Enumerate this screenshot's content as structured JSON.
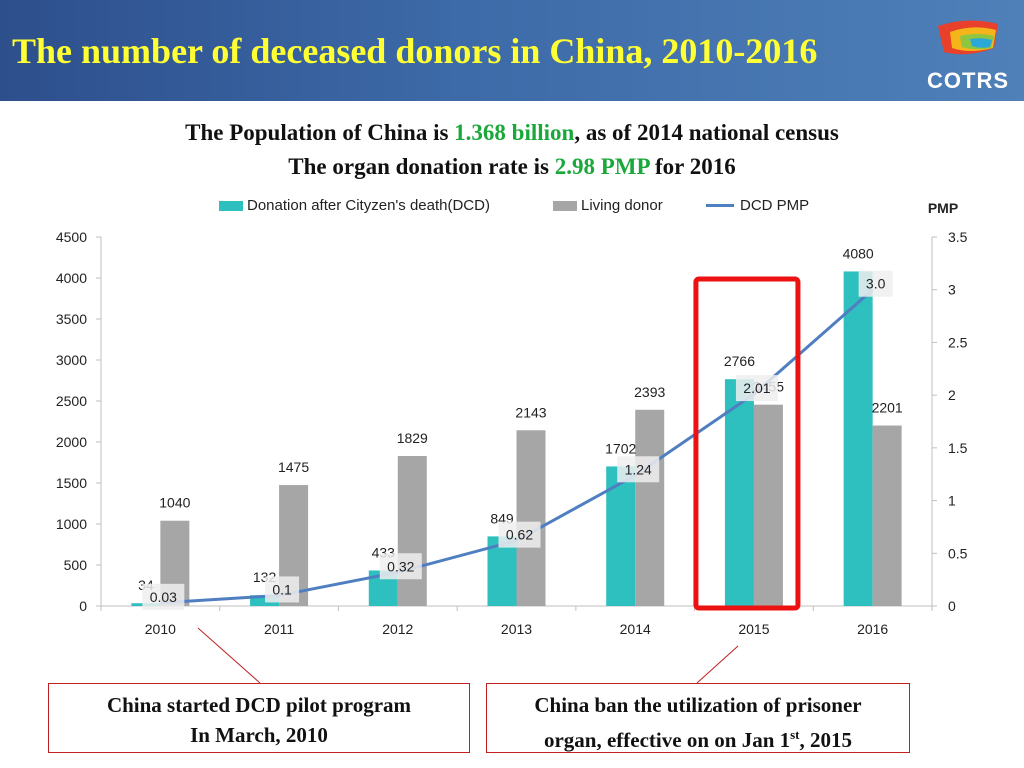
{
  "header": {
    "title": "The number of deceased donors in China, 2010-2016",
    "logo_text": "COTRS"
  },
  "subtitle": {
    "line1_pre": "The Population of China is ",
    "line1_value": "1.368 billion",
    "line1_post": ", as of 2014 national census",
    "line2_pre": "The organ donation rate is ",
    "line2_value": "2.98 PMP",
    "line2_post": " for 2016"
  },
  "chart_data": {
    "type": "bar",
    "categories": [
      "2010",
      "2011",
      "2012",
      "2013",
      "2014",
      "2015",
      "2016"
    ],
    "series": [
      {
        "name": "Donation after Cityzen's death(DCD)",
        "type": "bar",
        "axis": "left",
        "color": "#2ebfbf",
        "values": [
          34,
          132,
          433,
          849,
          1702,
          2766,
          4080
        ],
        "labels": [
          "34",
          "132",
          "433",
          "849",
          "1702",
          "2766",
          "4080"
        ]
      },
      {
        "name": "Living donor",
        "type": "bar",
        "axis": "left",
        "color": "#a6a6a6",
        "values": [
          1040,
          1475,
          1829,
          2143,
          2393,
          2455,
          2201
        ],
        "labels": [
          "1040",
          "1475",
          "1829",
          "2143",
          "2393",
          "2455",
          "2201"
        ]
      },
      {
        "name": "DCD PMP",
        "type": "line",
        "axis": "right",
        "color": "#4f7fc0",
        "values": [
          0.03,
          0.1,
          0.32,
          0.62,
          1.24,
          2.01,
          3.0
        ],
        "labels": [
          "0.03",
          "0.1",
          "0.32",
          "0.62",
          "1.24",
          "2.01",
          "3.0"
        ]
      }
    ],
    "y_left": {
      "min": 0,
      "max": 4500,
      "ticks": [
        "0",
        "500",
        "1000",
        "1500",
        "2000",
        "2500",
        "3000",
        "3500",
        "4000",
        "4500"
      ]
    },
    "y_right": {
      "label": "PMP",
      "min": 0,
      "max": 3.5,
      "ticks": [
        "0",
        "0.5",
        "1",
        "1.5",
        "2",
        "2.5",
        "3",
        "3.5"
      ]
    },
    "legend_position": "top",
    "grid": false,
    "highlight_category": "2015",
    "highlight_color": "#ee1111"
  },
  "notes": [
    {
      "line1": "China started DCD pilot program",
      "line2": "In March, 2010"
    },
    {
      "line1": "China ban the utilization of prisoner",
      "line2_pre": "organ, effective on on Jan 1",
      "line2_sup": "st",
      "line2_post": ", 2015"
    }
  ]
}
